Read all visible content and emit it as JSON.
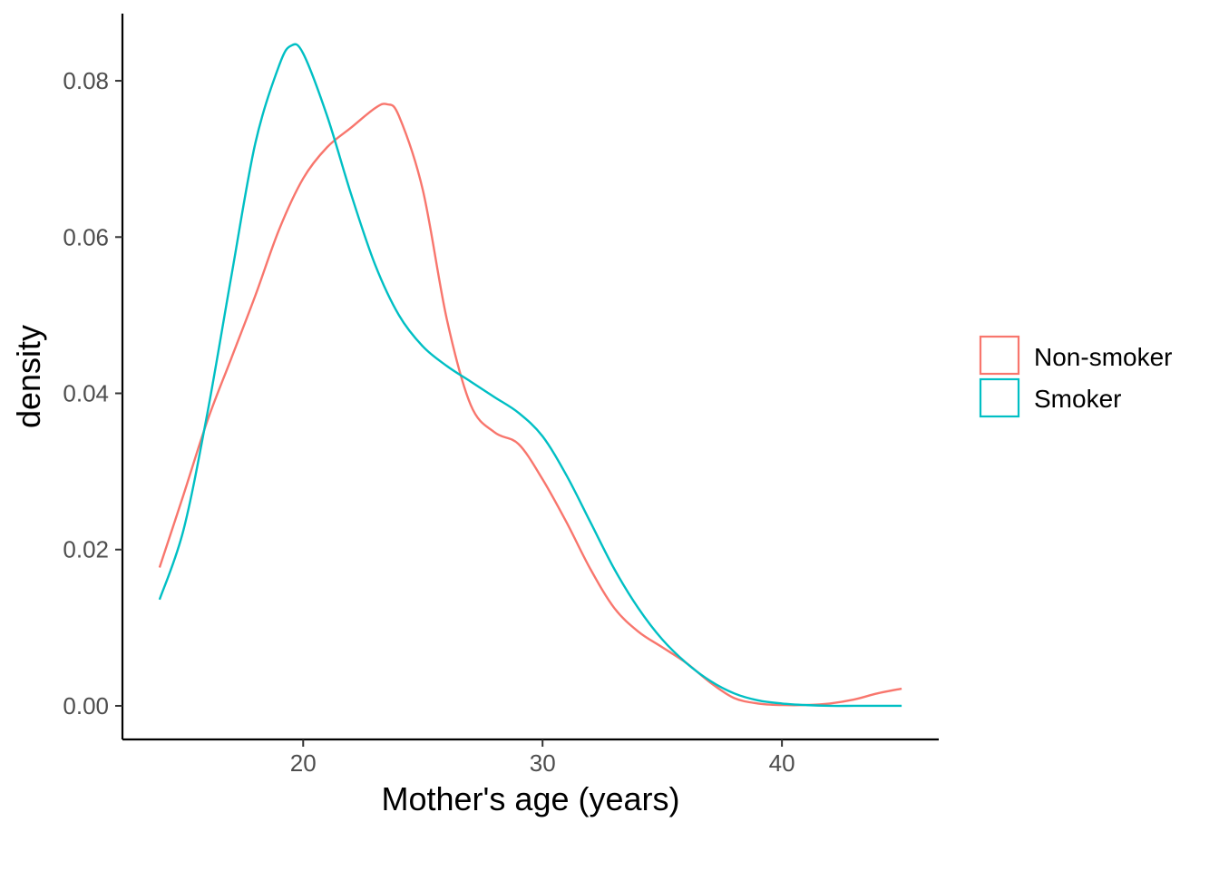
{
  "chart_data": {
    "type": "line",
    "subtype": "density",
    "xlabel": "Mother's age (years)",
    "ylabel": "density",
    "xlim": [
      12.45,
      46.55
    ],
    "ylim": [
      -0.0043,
      0.0886
    ],
    "x_ticks": [
      20,
      30,
      40
    ],
    "x_tick_labels": [
      "20",
      "30",
      "40"
    ],
    "y_ticks": [
      0,
      0.02,
      0.04,
      0.06,
      0.08
    ],
    "y_tick_labels": [
      "0.00",
      "0.02",
      "0.04",
      "0.06",
      "0.08"
    ],
    "grid": false,
    "legend": {
      "position": "right"
    },
    "series": [
      {
        "name": "Non-smoker",
        "color": "#F8766D",
        "x": [
          14,
          15,
          16,
          17,
          18,
          19,
          20,
          21,
          22,
          23,
          23.5,
          24,
          25,
          26,
          27,
          28,
          29,
          30,
          31,
          32,
          33,
          34,
          35,
          36,
          37,
          38,
          39,
          40,
          41,
          42,
          43,
          44,
          45
        ],
        "y": [
          0.0177,
          0.027,
          0.0365,
          0.0445,
          0.0525,
          0.061,
          0.0675,
          0.0715,
          0.074,
          0.0765,
          0.077,
          0.0755,
          0.066,
          0.0495,
          0.0385,
          0.035,
          0.0335,
          0.029,
          0.0235,
          0.0175,
          0.0125,
          0.0095,
          0.0075,
          0.0055,
          0.003,
          0.001,
          0.0003,
          0.0001,
          0.0001,
          0.0003,
          0.0008,
          0.0016,
          0.0022
        ]
      },
      {
        "name": "Smoker",
        "color": "#00BFC4",
        "x": [
          14,
          15,
          16,
          17,
          18,
          19,
          19.5,
          20,
          21,
          22,
          23,
          24,
          25,
          26,
          27,
          28,
          29,
          30,
          31,
          32,
          33,
          34,
          35,
          36,
          37,
          38,
          39,
          40,
          41,
          42,
          43,
          44,
          45
        ],
        "y": [
          0.0136,
          0.0225,
          0.0375,
          0.055,
          0.072,
          0.082,
          0.0845,
          0.0835,
          0.0755,
          0.0655,
          0.0565,
          0.05,
          0.046,
          0.0435,
          0.0415,
          0.0395,
          0.0375,
          0.0345,
          0.0295,
          0.0235,
          0.0175,
          0.0125,
          0.0085,
          0.0055,
          0.0032,
          0.0016,
          0.0007,
          0.0003,
          0.0001,
          0,
          0,
          0,
          0
        ]
      }
    ]
  }
}
